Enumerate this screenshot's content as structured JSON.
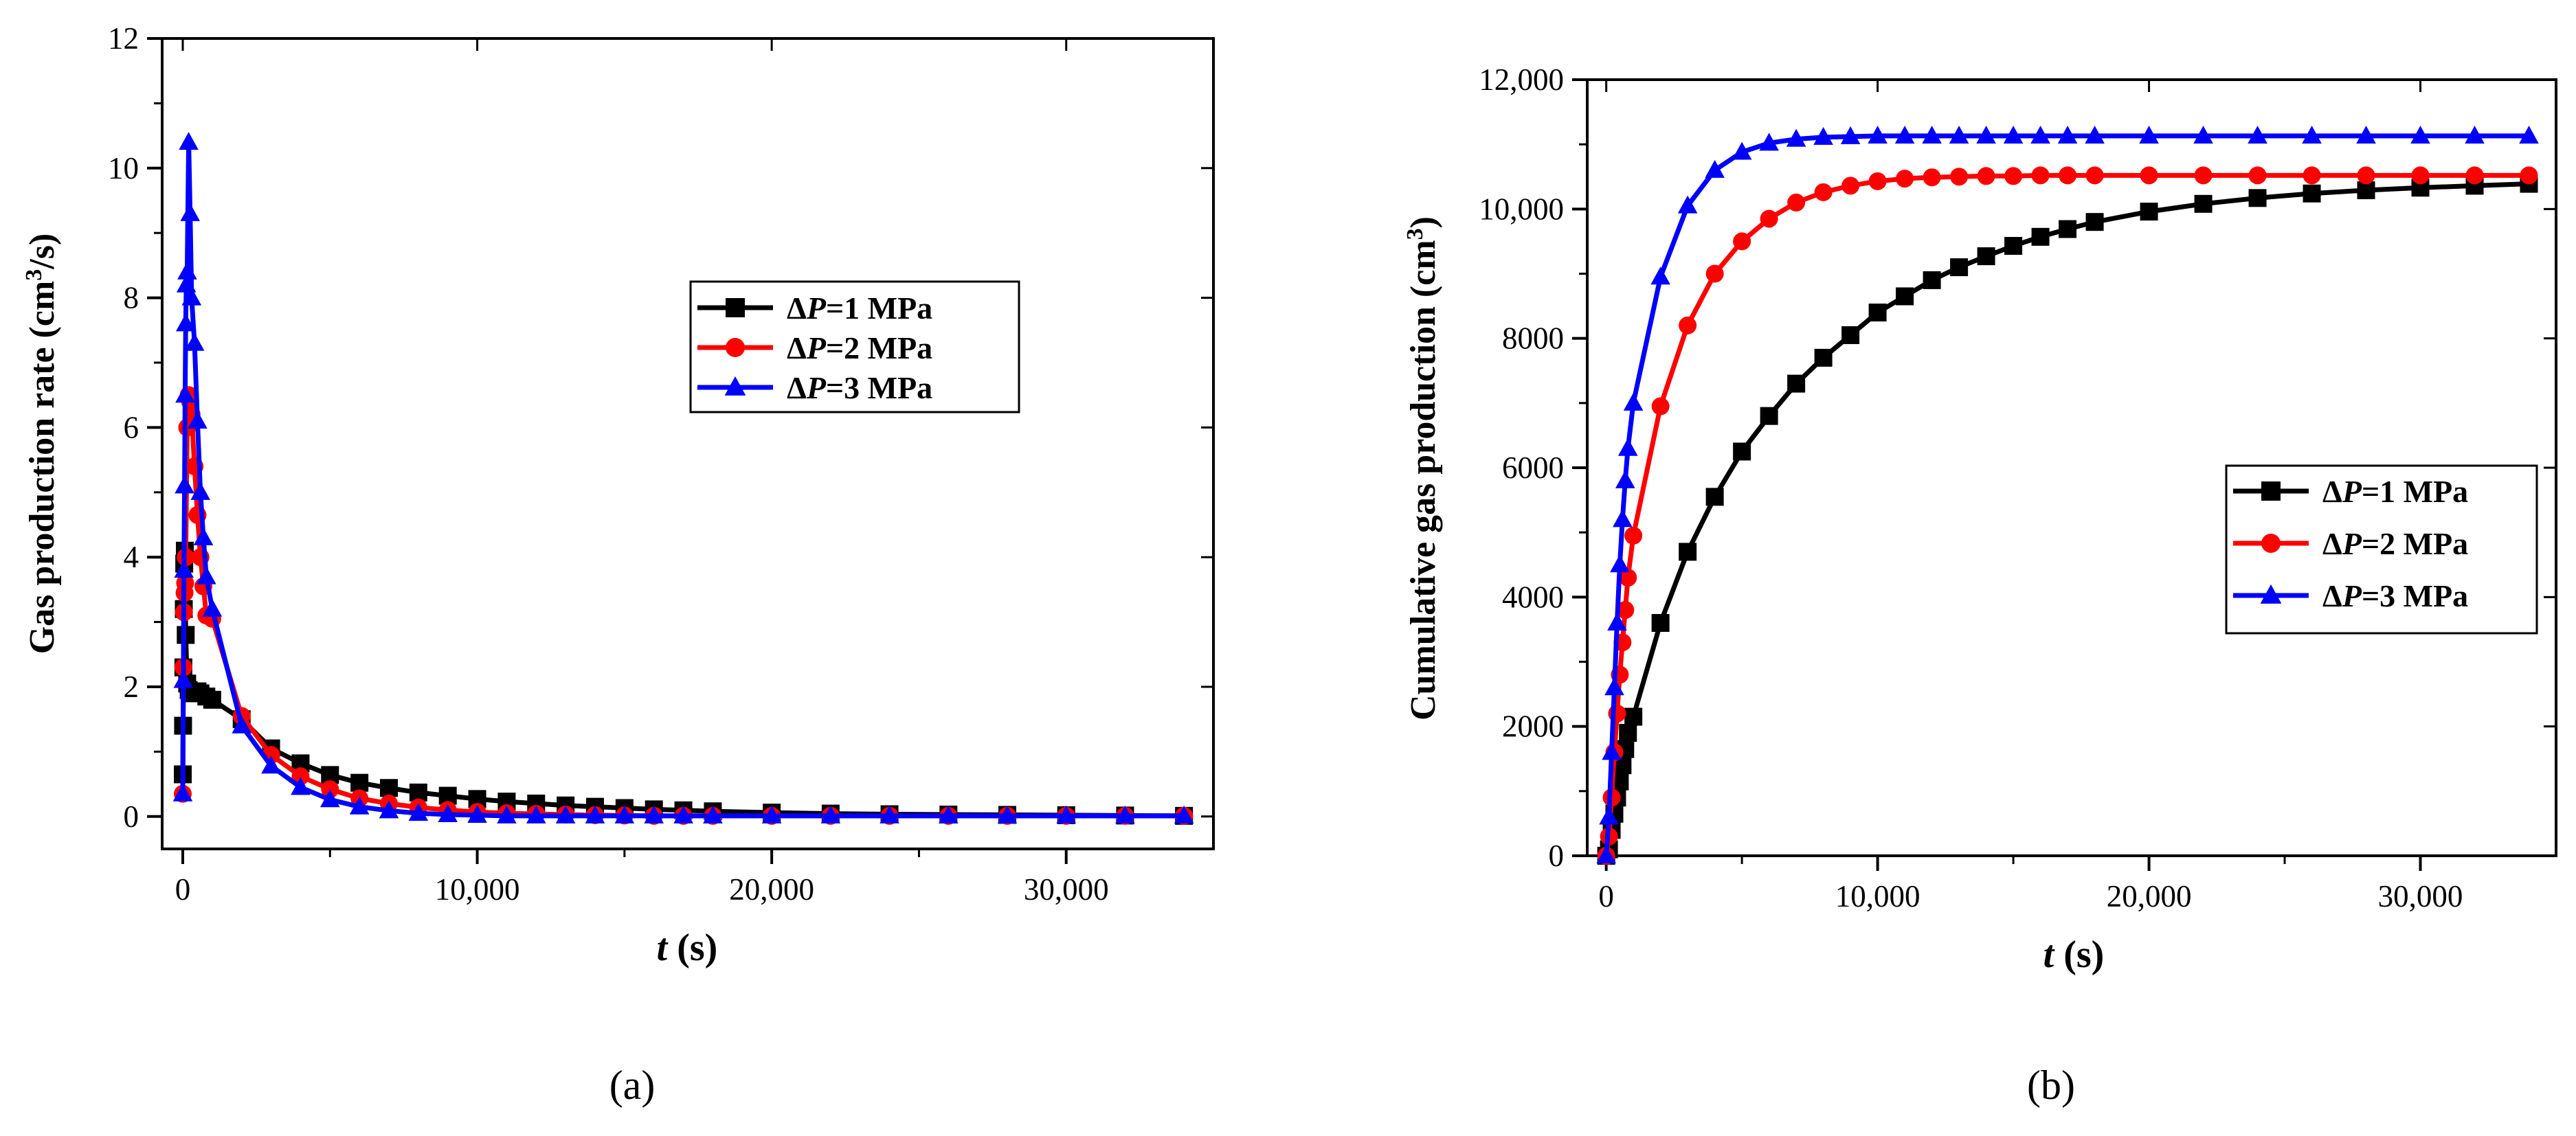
{
  "chart_data": [
    {
      "type": "line",
      "panel": "(a)",
      "ylabel_main": "Gas production rate (cm",
      "ylabel_sup": "3",
      "ylabel_tail": "/s)",
      "xlabel_var": "t",
      "xlabel_unit": " (s)",
      "xlim": [
        -700,
        35000
      ],
      "ylim": [
        -0.5,
        12
      ],
      "xticks": [
        0,
        10000,
        20000,
        30000
      ],
      "xtick_labels": [
        "0",
        "10,000",
        "20,000",
        "30,000"
      ],
      "yticks": [
        0,
        2,
        4,
        6,
        8,
        10,
        12
      ],
      "ytick_labels": [
        "0",
        "2",
        "4",
        "6",
        "8",
        "10",
        "12"
      ],
      "legend_position": "upper-right",
      "series": [
        {
          "name": "ΔP=1 MPa",
          "delta": "Δ",
          "var": "P",
          "value": "=1 MPa",
          "color": "#000000",
          "marker": "square",
          "x": [
            0,
            10,
            20,
            35,
            50,
            70,
            100,
            150,
            200,
            300,
            400,
            500,
            600,
            800,
            1000,
            2000,
            3000,
            4000,
            5000,
            6000,
            7000,
            8000,
            9000,
            10000,
            11000,
            12000,
            13000,
            14000,
            15000,
            16000,
            17000,
            18000,
            20000,
            22000,
            24000,
            26000,
            28000,
            30000,
            32000,
            34000
          ],
          "y": [
            0.65,
            1.4,
            2.3,
            3.2,
            3.9,
            4.1,
            2.8,
            2.05,
            1.95,
            1.9,
            1.92,
            1.93,
            1.9,
            1.85,
            1.8,
            1.5,
            1.05,
            0.82,
            0.64,
            0.52,
            0.44,
            0.37,
            0.32,
            0.27,
            0.23,
            0.2,
            0.17,
            0.15,
            0.13,
            0.11,
            0.095,
            0.08,
            0.06,
            0.045,
            0.035,
            0.03,
            0.025,
            0.02,
            0.015,
            0.01
          ]
        },
        {
          "name": "ΔP=2 MPa",
          "delta": "Δ",
          "var": "P",
          "value": "=2 MPa",
          "color": "#ff0000",
          "marker": "circle",
          "x": [
            0,
            20,
            40,
            60,
            80,
            100,
            150,
            200,
            250,
            300,
            400,
            500,
            600,
            700,
            800,
            1000,
            2000,
            3000,
            4000,
            5000,
            6000,
            7000,
            8000,
            9000,
            10000,
            11000,
            12000,
            13000,
            14000,
            15000,
            16000,
            17000,
            18000,
            20000,
            22000,
            24000,
            26000,
            28000,
            30000,
            32000,
            34000
          ],
          "y": [
            0.35,
            2.3,
            3.15,
            3.45,
            3.6,
            4.0,
            6.0,
            6.5,
            6.4,
            6.2,
            5.4,
            4.65,
            4.0,
            3.55,
            3.1,
            3.05,
            1.55,
            0.95,
            0.62,
            0.42,
            0.28,
            0.2,
            0.14,
            0.1,
            0.07,
            0.05,
            0.04,
            0.03,
            0.02,
            0.015,
            0.01,
            0.01,
            0.01,
            0.01,
            0.01,
            0.01,
            0.01,
            0.01,
            0.01,
            0.01,
            0.01
          ]
        },
        {
          "name": "ΔP=3 MPa",
          "delta": "Δ",
          "var": "P",
          "value": "=3 MPa",
          "color": "#0000ff",
          "marker": "triangle",
          "x": [
            0,
            20,
            40,
            60,
            80,
            100,
            120,
            150,
            200,
            250,
            300,
            400,
            500,
            600,
            700,
            800,
            1000,
            2000,
            3000,
            4000,
            5000,
            6000,
            7000,
            8000,
            9000,
            10000,
            11000,
            12000,
            13000,
            14000,
            15000,
            16000,
            17000,
            18000,
            20000,
            22000,
            24000,
            26000,
            28000,
            30000,
            32000,
            34000
          ],
          "y": [
            0.35,
            2.1,
            3.8,
            5.1,
            6.5,
            7.6,
            8.2,
            8.4,
            10.4,
            9.3,
            8.0,
            7.3,
            6.1,
            5.0,
            4.3,
            3.7,
            3.2,
            1.4,
            0.78,
            0.45,
            0.26,
            0.15,
            0.09,
            0.05,
            0.03,
            0.02,
            0.01,
            0.01,
            0.01,
            0.01,
            0.01,
            0.01,
            0.01,
            0.01,
            0.01,
            0.01,
            0.01,
            0.01,
            0.01,
            0.01,
            0.01,
            0.01
          ]
        }
      ]
    },
    {
      "type": "line",
      "panel": "(b)",
      "ylabel_main": "Cumulative gas production (cm",
      "ylabel_sup": "3",
      "ylabel_tail": ")",
      "xlabel_var": "t",
      "xlabel_unit": " (s)",
      "xlim": [
        -700,
        35000
      ],
      "ylim": [
        0,
        12000
      ],
      "xticks": [
        0,
        10000,
        20000,
        30000
      ],
      "xtick_labels": [
        "0",
        "10,000",
        "20,000",
        "30,000"
      ],
      "yticks": [
        0,
        2000,
        4000,
        6000,
        8000,
        10000,
        12000
      ],
      "ytick_labels": [
        "0",
        "2000",
        "4000",
        "6000",
        "8000",
        "10,000",
        "12,000"
      ],
      "legend_position": "lower-right",
      "series": [
        {
          "name": "ΔP=1 MPa",
          "delta": "Δ",
          "var": "P",
          "value": "=1 MPa",
          "color": "#000000",
          "marker": "square",
          "x": [
            0,
            100,
            200,
            300,
            400,
            500,
            600,
            700,
            800,
            1000,
            2000,
            3000,
            4000,
            5000,
            6000,
            7000,
            8000,
            9000,
            10000,
            11000,
            12000,
            13000,
            14000,
            15000,
            16000,
            17000,
            18000,
            20000,
            22000,
            24000,
            26000,
            28000,
            30000,
            32000,
            34000
          ],
          "y": [
            0,
            100,
            400,
            650,
            900,
            1150,
            1400,
            1650,
            1900,
            2150,
            3600,
            4700,
            5550,
            6250,
            6800,
            7300,
            7700,
            8050,
            8400,
            8650,
            8900,
            9100,
            9270,
            9430,
            9570,
            9690,
            9800,
            9960,
            10080,
            10170,
            10240,
            10290,
            10330,
            10360,
            10390
          ]
        },
        {
          "name": "ΔP=2 MPa",
          "delta": "Δ",
          "var": "P",
          "value": "=2 MPa",
          "color": "#ff0000",
          "marker": "circle",
          "x": [
            0,
            100,
            200,
            300,
            400,
            500,
            600,
            700,
            800,
            1000,
            2000,
            3000,
            4000,
            5000,
            6000,
            7000,
            8000,
            9000,
            10000,
            11000,
            12000,
            13000,
            14000,
            15000,
            16000,
            17000,
            18000,
            20000,
            22000,
            24000,
            26000,
            28000,
            30000,
            32000,
            34000
          ],
          "y": [
            0,
            300,
            900,
            1600,
            2200,
            2800,
            3300,
            3800,
            4300,
            4950,
            6950,
            8200,
            9000,
            9500,
            9850,
            10100,
            10260,
            10360,
            10430,
            10470,
            10490,
            10500,
            10510,
            10510,
            10520,
            10520,
            10520,
            10520,
            10520,
            10520,
            10520,
            10520,
            10520,
            10520,
            10520
          ]
        },
        {
          "name": "ΔP=3 MPa",
          "delta": "Δ",
          "var": "P",
          "value": "=3 MPa",
          "color": "#0000ff",
          "marker": "triangle",
          "x": [
            0,
            100,
            200,
            300,
            400,
            500,
            600,
            700,
            800,
            1000,
            2000,
            3000,
            4000,
            5000,
            6000,
            7000,
            8000,
            9000,
            10000,
            11000,
            12000,
            13000,
            14000,
            15000,
            16000,
            17000,
            18000,
            20000,
            22000,
            24000,
            26000,
            28000,
            30000,
            32000,
            34000
          ],
          "y": [
            0,
            600,
            1600,
            2600,
            3600,
            4500,
            5200,
            5800,
            6300,
            7000,
            8950,
            10050,
            10600,
            10880,
            11020,
            11080,
            11110,
            11120,
            11130,
            11130,
            11130,
            11130,
            11130,
            11130,
            11130,
            11130,
            11130,
            11130,
            11130,
            11130,
            11130,
            11130,
            11130,
            11130,
            11130
          ]
        }
      ]
    }
  ]
}
